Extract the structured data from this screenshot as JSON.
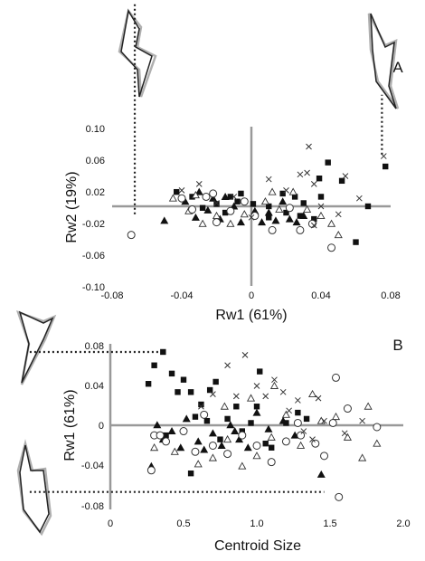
{
  "chart_data": [
    {
      "panel_label": "A",
      "type": "scatter",
      "xlabel": "Rw1 (61%)",
      "ylabel": "Rw2 (19%)",
      "xlim": [
        -0.08,
        0.08
      ],
      "ylim": [
        -0.1,
        0.1
      ],
      "xticks": [
        "-0.08",
        "-0.04",
        "0",
        "0.04",
        "0.08"
      ],
      "yticks": [
        "0.10",
        "0.06",
        "0.02",
        "-0.02",
        "-0.06",
        "-0.10"
      ],
      "series": [
        {
          "marker": "filled-square",
          "points": [
            [
              -0.043,
              0.018
            ],
            [
              -0.02,
              0.003
            ],
            [
              -0.012,
              0.012
            ],
            [
              -0.008,
              0.006
            ],
            [
              0.001,
              0.003
            ],
            [
              0.01,
              0.0
            ],
            [
              0.02,
              -0.008
            ],
            [
              0.03,
              0.004
            ],
            [
              0.036,
              -0.016
            ],
            [
              0.04,
              0.012
            ],
            [
              0.044,
              0.055
            ],
            [
              0.052,
              0.032
            ],
            [
              0.06,
              -0.045
            ],
            [
              0.067,
              0.0
            ],
            [
              0.077,
              0.05
            ],
            [
              -0.034,
              0.012
            ],
            [
              0.018,
              0.016
            ],
            [
              0.028,
              -0.012
            ],
            [
              -0.015,
              -0.008
            ],
            [
              0.01,
              -0.014
            ],
            [
              0.039,
              0.035
            ],
            [
              0.025,
              0.012
            ],
            [
              -0.006,
              0.016
            ],
            [
              -0.028,
              -0.002
            ]
          ]
        },
        {
          "marker": "filled-triangle",
          "points": [
            [
              -0.05,
              -0.018
            ],
            [
              -0.038,
              0.006
            ],
            [
              -0.032,
              -0.014
            ],
            [
              -0.03,
              0.018
            ],
            [
              -0.025,
              -0.005
            ],
            [
              -0.018,
              -0.016
            ],
            [
              -0.01,
              0.0
            ],
            [
              -0.006,
              -0.02
            ],
            [
              0.002,
              -0.006
            ],
            [
              0.006,
              -0.02
            ],
            [
              0.01,
              -0.008
            ],
            [
              0.014,
              -0.018
            ],
            [
              0.018,
              0.006
            ],
            [
              0.022,
              -0.016
            ],
            [
              0.03,
              -0.012
            ],
            [
              -0.022,
              0.01
            ],
            [
              -0.015,
              0.012
            ],
            [
              0.026,
              -0.02
            ]
          ]
        },
        {
          "marker": "open-triangle",
          "points": [
            [
              -0.045,
              0.01
            ],
            [
              -0.036,
              -0.006
            ],
            [
              -0.028,
              -0.022
            ],
            [
              -0.02,
              -0.012
            ],
            [
              -0.012,
              -0.022
            ],
            [
              -0.004,
              -0.01
            ],
            [
              0.008,
              0.006
            ],
            [
              0.016,
              -0.004
            ],
            [
              0.024,
              0.018
            ],
            [
              0.032,
              -0.004
            ],
            [
              0.04,
              -0.012
            ],
            [
              0.046,
              -0.022
            ],
            [
              0.05,
              -0.036
            ],
            [
              -0.032,
              0.014
            ],
            [
              0.012,
              0.018
            ]
          ]
        },
        {
          "marker": "open-circle",
          "points": [
            [
              -0.069,
              -0.036
            ],
            [
              -0.04,
              0.01
            ],
            [
              -0.034,
              -0.004
            ],
            [
              -0.026,
              0.012
            ],
            [
              -0.02,
              -0.02
            ],
            [
              -0.012,
              -0.006
            ],
            [
              -0.004,
              0.006
            ],
            [
              0.002,
              -0.012
            ],
            [
              0.012,
              -0.03
            ],
            [
              0.022,
              -0.002
            ],
            [
              0.035,
              -0.022
            ],
            [
              0.046,
              -0.052
            ],
            [
              -0.022,
              0.016
            ],
            [
              0.028,
              -0.03
            ]
          ]
        },
        {
          "marker": "cross",
          "points": [
            [
              -0.04,
              0.02
            ],
            [
              -0.03,
              0.028
            ],
            [
              -0.02,
              0.004
            ],
            [
              -0.01,
              0.012
            ],
            [
              0.0,
              -0.014
            ],
            [
              0.01,
              0.034
            ],
            [
              0.02,
              0.02
            ],
            [
              0.028,
              0.04
            ],
            [
              0.032,
              0.042
            ],
            [
              0.036,
              0.028
            ],
            [
              0.04,
              0.0
            ],
            [
              0.05,
              -0.01
            ],
            [
              0.054,
              0.038
            ],
            [
              0.062,
              0.01
            ],
            [
              0.076,
              0.063
            ],
            [
              0.033,
              0.075
            ],
            [
              0.036,
              -0.024
            ]
          ]
        }
      ],
      "guide_lines": [
        {
          "style": "dotted",
          "x": -0.067,
          "y_from": -0.01,
          "y_to": 0.255
        },
        {
          "style": "dotted",
          "x": 0.075,
          "y_from": 0.065,
          "y_to": 0.14
        }
      ]
    },
    {
      "panel_label": "B",
      "type": "scatter",
      "xlabel": "Centroid Size",
      "ylabel": "Rw1 (61%)",
      "xlim": [
        0,
        2.0
      ],
      "ylim": [
        -0.08,
        0.08
      ],
      "xticks": [
        "0",
        "0.5",
        "1.0",
        "1.5",
        "2.0"
      ],
      "yticks": [
        "0.08",
        "0.04",
        "0",
        "-0.04",
        "-0.08"
      ],
      "series": [
        {
          "marker": "filled-square",
          "points": [
            [
              0.36,
              0.073
            ],
            [
              0.3,
              0.06
            ],
            [
              0.26,
              0.042
            ],
            [
              0.42,
              0.052
            ],
            [
              0.46,
              0.034
            ],
            [
              0.5,
              0.046
            ],
            [
              0.55,
              0.034
            ],
            [
              0.58,
              0.01
            ],
            [
              0.62,
              0.022
            ],
            [
              0.66,
              0.006
            ],
            [
              0.72,
              0.044
            ],
            [
              0.75,
              -0.012
            ],
            [
              0.8,
              0.008
            ],
            [
              0.86,
              0.02
            ],
            [
              0.9,
              -0.004
            ],
            [
              0.96,
              0.004
            ],
            [
              1.02,
              0.054
            ],
            [
              1.06,
              -0.016
            ],
            [
              1.1,
              -0.02
            ],
            [
              1.2,
              0.004
            ],
            [
              1.28,
              0.014
            ],
            [
              1.34,
              0.008
            ],
            [
              0.55,
              -0.045
            ],
            [
              0.38,
              -0.008
            ],
            [
              0.68,
              0.036
            ],
            [
              1.0,
              0.02
            ]
          ]
        },
        {
          "marker": "filled-triangle",
          "points": [
            [
              0.28,
              -0.038
            ],
            [
              0.32,
              0.002
            ],
            [
              0.36,
              -0.012
            ],
            [
              0.42,
              -0.004
            ],
            [
              0.48,
              -0.02
            ],
            [
              0.52,
              0.008
            ],
            [
              0.6,
              -0.014
            ],
            [
              0.64,
              -0.022
            ],
            [
              0.7,
              -0.006
            ],
            [
              0.76,
              -0.018
            ],
            [
              0.82,
              0.002
            ],
            [
              0.88,
              -0.012
            ],
            [
              0.94,
              -0.02
            ],
            [
              1.0,
              0.014
            ],
            [
              1.08,
              -0.002
            ],
            [
              1.18,
              0.006
            ],
            [
              1.26,
              -0.008
            ],
            [
              1.44,
              -0.046
            ],
            [
              0.85,
              -0.004
            ]
          ]
        },
        {
          "marker": "open-triangle",
          "points": [
            [
              0.3,
              -0.02
            ],
            [
              0.44,
              -0.024
            ],
            [
              0.6,
              -0.036
            ],
            [
              0.7,
              -0.03
            ],
            [
              0.8,
              -0.012
            ],
            [
              0.9,
              -0.038
            ],
            [
              1.0,
              -0.028
            ],
            [
              1.1,
              -0.01
            ],
            [
              1.2,
              0.012
            ],
            [
              1.3,
              -0.018
            ],
            [
              1.38,
              0.032
            ],
            [
              1.44,
              0.006
            ],
            [
              1.54,
              0.01
            ],
            [
              1.62,
              -0.01
            ],
            [
              1.72,
              -0.03
            ],
            [
              1.76,
              0.02
            ],
            [
              1.82,
              -0.016
            ],
            [
              0.78,
              0.02
            ],
            [
              1.12,
              0.04
            ],
            [
              0.96,
              0.028
            ]
          ]
        },
        {
          "marker": "open-circle",
          "points": [
            [
              0.28,
              -0.042
            ],
            [
              0.3,
              -0.008
            ],
            [
              0.34,
              -0.008
            ],
            [
              0.38,
              -0.014
            ],
            [
              0.5,
              -0.004
            ],
            [
              0.58,
              -0.024
            ],
            [
              0.64,
              0.012
            ],
            [
              0.7,
              -0.018
            ],
            [
              0.8,
              -0.026
            ],
            [
              0.9,
              -0.008
            ],
            [
              1.0,
              -0.018
            ],
            [
              1.1,
              -0.034
            ],
            [
              1.2,
              -0.014
            ],
            [
              1.3,
              -0.008
            ],
            [
              1.4,
              -0.016
            ],
            [
              1.46,
              -0.028
            ],
            [
              1.52,
              0.004
            ],
            [
              1.54,
              0.048
            ],
            [
              1.56,
              -0.068
            ],
            [
              1.62,
              0.018
            ],
            [
              1.82,
              0.0
            ],
            [
              1.28,
              0.004
            ]
          ]
        },
        {
          "marker": "cross",
          "points": [
            [
              0.8,
              0.06
            ],
            [
              0.92,
              0.07
            ],
            [
              1.0,
              0.04
            ],
            [
              1.06,
              0.03
            ],
            [
              1.12,
              0.046
            ],
            [
              1.18,
              0.034
            ],
            [
              1.22,
              0.016
            ],
            [
              1.28,
              0.026
            ],
            [
              1.32,
              -0.004
            ],
            [
              1.38,
              -0.012
            ],
            [
              1.42,
              0.028
            ],
            [
              1.46,
              0.006
            ],
            [
              0.7,
              0.032
            ],
            [
              0.62,
              0.02
            ],
            [
              1.72,
              0.006
            ],
            [
              1.6,
              -0.006
            ],
            [
              0.86,
              0.03
            ]
          ]
        }
      ],
      "guide_lines": [
        {
          "style": "dotted",
          "x_from": -0.55,
          "x_to": 0.36,
          "y": 0.073
        },
        {
          "style": "dotted",
          "x_from": -0.55,
          "x_to": 1.46,
          "y": -0.063
        }
      ]
    }
  ]
}
